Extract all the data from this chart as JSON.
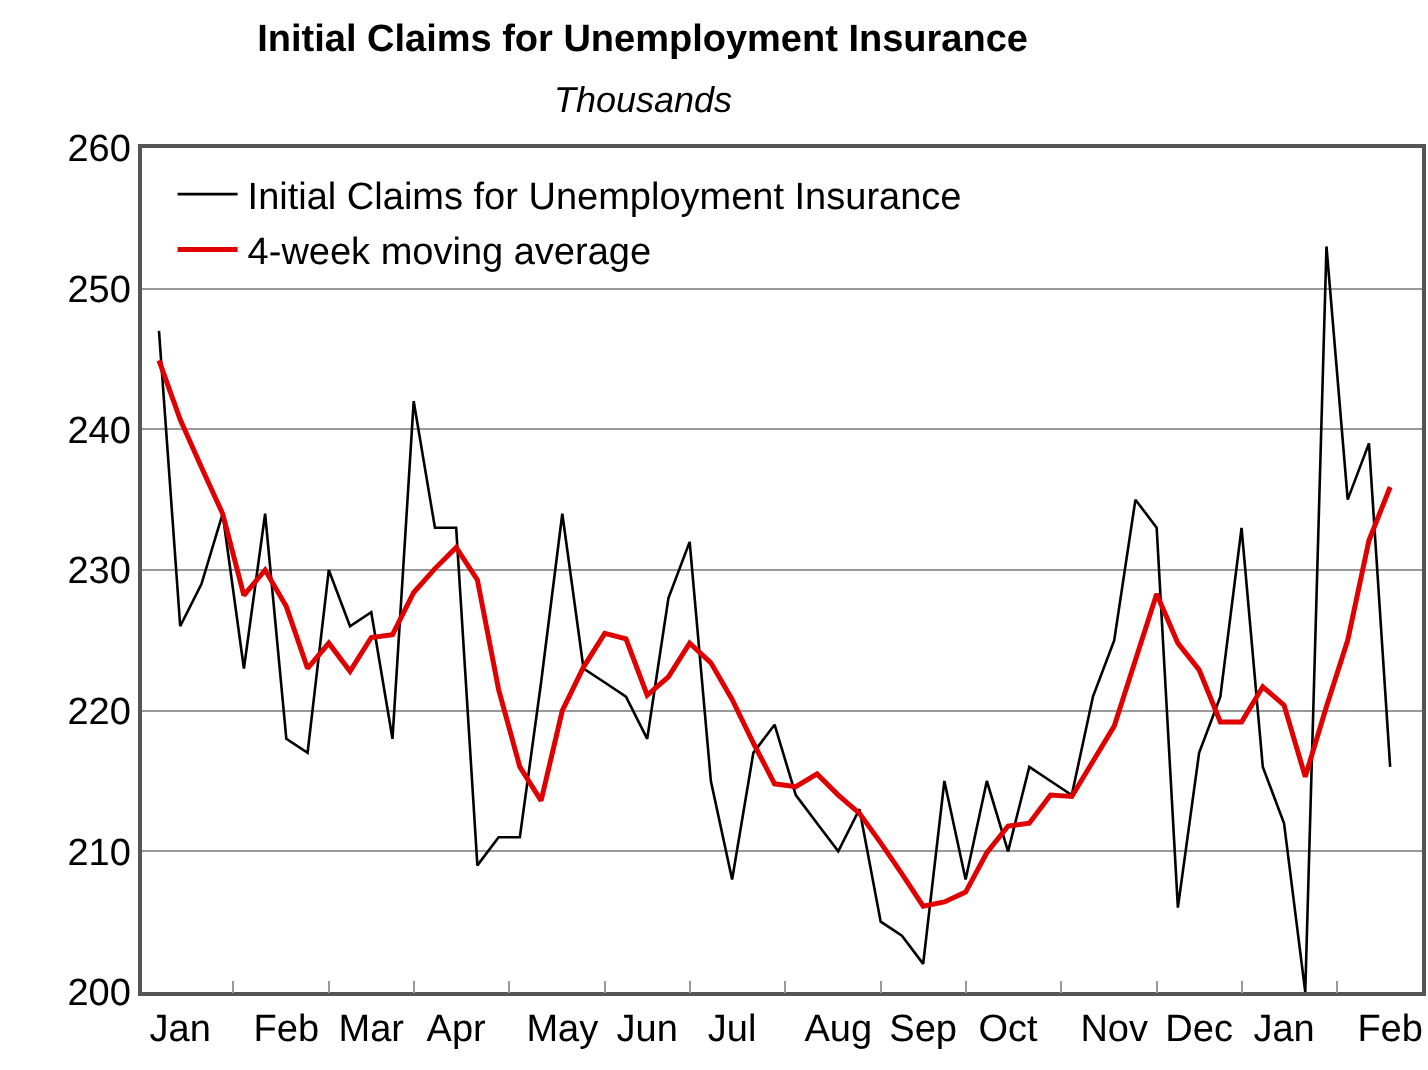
{
  "chart_data": {
    "type": "line",
    "title": "Initial Claims for Unemployment Insurance",
    "subtitle": "Thousands",
    "categories": [
      null,
      "Jan",
      null,
      null,
      null,
      null,
      "Feb",
      null,
      null,
      null,
      "Mar",
      null,
      null,
      null,
      "Apr",
      null,
      null,
      null,
      null,
      "May",
      null,
      null,
      null,
      "Jun",
      null,
      null,
      null,
      "Jul",
      null,
      null,
      null,
      null,
      "Aug",
      null,
      null,
      null,
      "Sep",
      null,
      null,
      null,
      "Oct",
      null,
      null,
      null,
      null,
      "Nov",
      null,
      null,
      null,
      "Dec",
      null,
      null,
      null,
      "Jan",
      null,
      null,
      null,
      null,
      "Feb"
    ],
    "series": [
      {
        "name": "Initial Claims for Unemployment Insurance",
        "color": "#000000",
        "values": [
          247,
          226,
          229,
          234,
          223,
          234,
          218,
          217,
          230,
          226,
          227,
          218,
          242,
          233,
          233,
          209,
          211,
          211,
          222,
          234,
          223,
          222,
          221,
          218,
          228,
          232,
          215,
          208,
          217,
          219,
          214,
          212,
          210,
          213,
          205,
          204,
          202,
          215,
          208,
          215,
          210,
          216,
          215,
          214,
          221,
          225,
          235,
          233,
          206,
          217,
          221,
          233,
          216,
          212,
          200,
          253,
          235,
          239,
          216
        ]
      },
      {
        "name": "4-week moving average",
        "color": "#e00000",
        "values": [
          244.9,
          240.7,
          237.3,
          234.0,
          228.2,
          230.0,
          227.4,
          223.0,
          224.8,
          222.8,
          225.2,
          225.4,
          228.4,
          230.1,
          231.6,
          229.3,
          221.5,
          216.0,
          213.6,
          220.0,
          223.1,
          225.5,
          225.1,
          221.1,
          222.4,
          224.8,
          223.4,
          220.8,
          217.7,
          214.8,
          214.6,
          215.5,
          214.0,
          212.7,
          210.6,
          208.4,
          206.1,
          206.4,
          207.1,
          209.9,
          211.8,
          212.0,
          214.0,
          213.9,
          216.4,
          218.9,
          223.6,
          228.3,
          224.8,
          222.9,
          219.2,
          219.2,
          221.7,
          220.4,
          215.3,
          220.3,
          225.0,
          232.1,
          235.9
        ]
      }
    ],
    "ylim": [
      200,
      260
    ],
    "yticks": [
      200,
      210,
      220,
      230,
      240,
      250,
      260
    ],
    "grid": "y",
    "legend": "top left",
    "marker": "none",
    "line_style": "solid"
  }
}
